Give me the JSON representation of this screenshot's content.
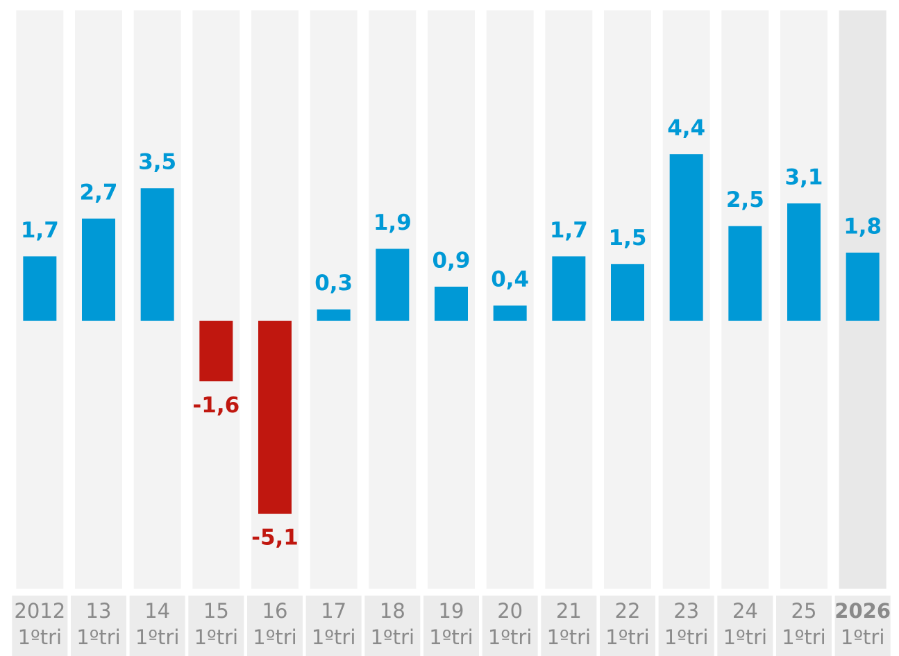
{
  "chart_data": {
    "type": "bar",
    "categories": [
      "2012",
      "13",
      "14",
      "15",
      "16",
      "17",
      "18",
      "19",
      "20",
      "21",
      "22",
      "23",
      "24",
      "25",
      "2026"
    ],
    "category_sublabels": [
      "1ºtri",
      "1ºtri",
      "1ºtri",
      "1ºtri",
      "1ºtri",
      "1ºtri",
      "1ºtri",
      "1ºtri",
      "1ºtri",
      "1ºtri",
      "1ºtri",
      "1ºtri",
      "1ºtri",
      "1ºtri",
      "1ºtri"
    ],
    "values": [
      1.7,
      2.7,
      3.5,
      -1.6,
      -5.1,
      0.3,
      1.9,
      0.9,
      0.4,
      1.7,
      1.5,
      4.4,
      2.5,
      3.1,
      1.8
    ],
    "value_labels": [
      "1,7",
      "2,7",
      "3,5",
      "-1,6",
      "-5,1",
      "0,3",
      "1,9",
      "0,9",
      "0,4",
      "1,7",
      "1,5",
      "4,4",
      "2,5",
      "3,1",
      "1,8"
    ],
    "color": "#0099d6",
    "negative_color": "#c0170f",
    "ylim": [
      -7.08,
      8.2
    ],
    "highlight_index": 14
  }
}
